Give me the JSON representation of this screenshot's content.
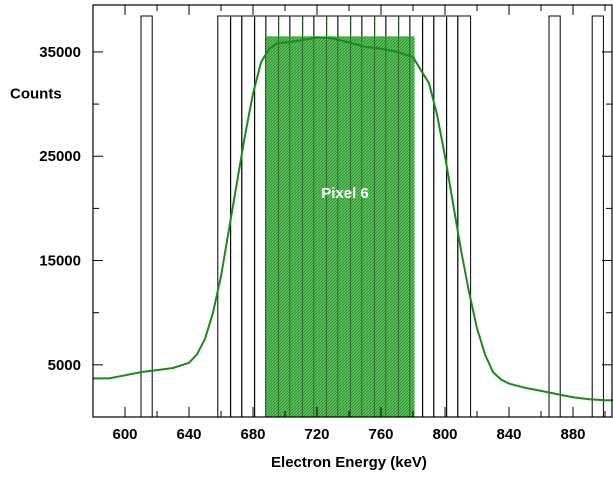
{
  "chart_data": {
    "type": "line",
    "xlabel": "Electron Energy (keV)",
    "ylabel": "Counts",
    "xlim": [
      580,
      905
    ],
    "ylim": [
      0,
      39500
    ],
    "x_ticks": [
      600,
      640,
      680,
      720,
      760,
      800,
      840,
      880
    ],
    "y_ticks": [
      5000,
      15000,
      25000,
      35000
    ],
    "grid": false,
    "annotation": "Pixel 6",
    "colors": {
      "curve": "#1a8a1a",
      "pixel_fill": "#5cc85c",
      "pixel_hatch": "#2e7d32",
      "bars": "#000000"
    },
    "series": [
      {
        "x": [
          580,
          590,
          600,
          610,
          620,
          630,
          640,
          645,
          650,
          655,
          660,
          665,
          670,
          675,
          680,
          685,
          690,
          695,
          700,
          710,
          720,
          730,
          740,
          750,
          760,
          770,
          780,
          790,
          795,
          800,
          805,
          810,
          815,
          820,
          825,
          830,
          835,
          840,
          850,
          860,
          870,
          880,
          890,
          900,
          905
        ],
        "y": [
          3700,
          3700,
          4000,
          4300,
          4500,
          4700,
          5200,
          6000,
          7500,
          10000,
          13500,
          18000,
          22500,
          27000,
          31000,
          34000,
          35300,
          35800,
          35900,
          36100,
          36400,
          36300,
          35900,
          35500,
          35300,
          35000,
          34500,
          32000,
          29000,
          25000,
          20500,
          16000,
          12000,
          8500,
          6000,
          4300,
          3600,
          3200,
          2800,
          2500,
          2200,
          1900,
          1700,
          1600,
          1600
        ]
      }
    ],
    "pixel_windows": [
      [
        610,
        617
      ],
      [
        658,
        666
      ],
      [
        666,
        673
      ],
      [
        673,
        681
      ],
      [
        681,
        688
      ],
      [
        688,
        696
      ],
      [
        696,
        703
      ],
      [
        703,
        711
      ],
      [
        711,
        718
      ],
      [
        718,
        726
      ],
      [
        726,
        733
      ],
      [
        733,
        741
      ],
      [
        741,
        748
      ],
      [
        748,
        756
      ],
      [
        756,
        763
      ],
      [
        763,
        771
      ],
      [
        771,
        778
      ],
      [
        778,
        786
      ],
      [
        786,
        793
      ],
      [
        793,
        801
      ],
      [
        801,
        808
      ],
      [
        808,
        816
      ],
      [
        865,
        872
      ],
      [
        892,
        899
      ]
    ],
    "highlighted_window": [
      688,
      781
    ],
    "highlight_top": 36500
  }
}
